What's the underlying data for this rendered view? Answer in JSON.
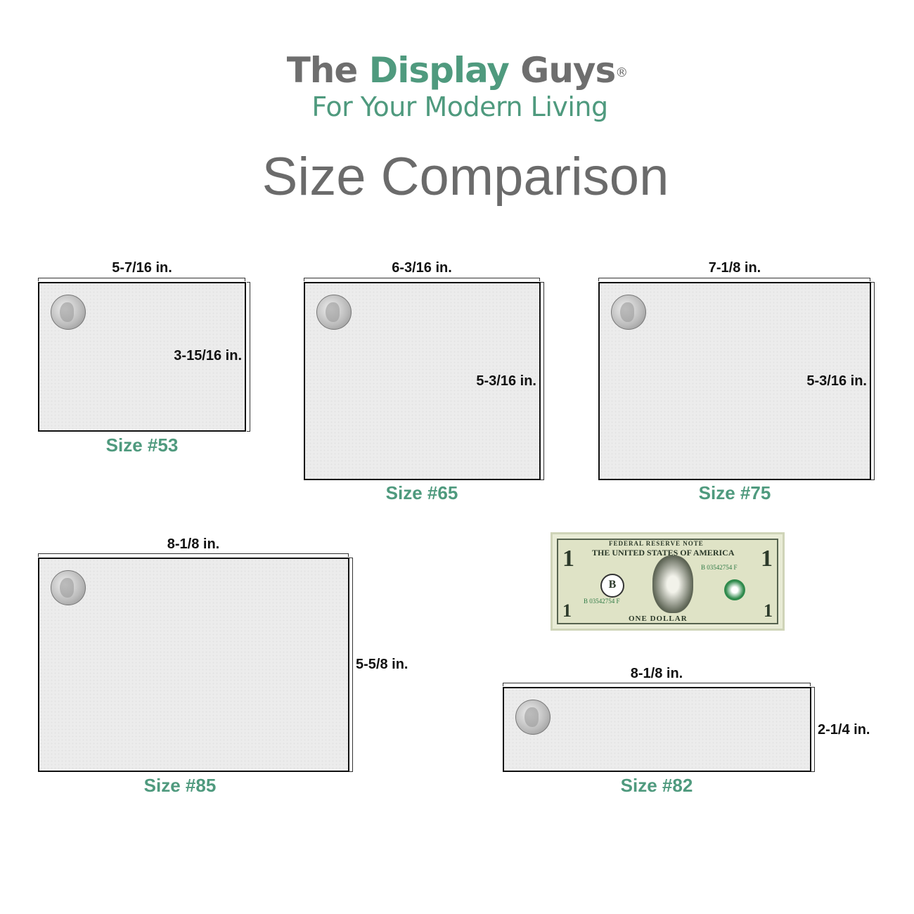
{
  "brand": {
    "word1": "The",
    "word2": "Display",
    "word3": "Guys",
    "mark": "®",
    "tagline": "For Your Modern Living"
  },
  "title": "Size Comparison",
  "colors": {
    "accent_green": "#4f9a7e",
    "brand_gray": "#6e6e6e",
    "box_fill": "#ececec"
  },
  "items": [
    {
      "size": "Size #53",
      "width": "5-7/16 in.",
      "height": "3-15/16 in.",
      "icon": "quarter-coin-icon"
    },
    {
      "size": "Size #65",
      "width": "6-3/16 in.",
      "height": "5-3/16 in.",
      "icon": "quarter-coin-icon"
    },
    {
      "size": "Size #75",
      "width": "7-1/8 in.",
      "height": "5-3/16 in.",
      "icon": "quarter-coin-icon"
    },
    {
      "size": "Size #85",
      "width": "8-1/8 in.",
      "height": "5-5/8 in.",
      "icon": "quarter-coin-icon"
    },
    {
      "size": "Size #82",
      "width": "8-1/8 in.",
      "height": "2-1/4 in.",
      "icon": "quarter-coin-icon"
    }
  ],
  "bill": {
    "header": "FEDERAL RESERVE NOTE",
    "country": "THE UNITED STATES OF AMERICA",
    "serial": "B 03542754 F",
    "footer": "ONE DOLLAR",
    "denomination": "1",
    "letter": "B"
  }
}
